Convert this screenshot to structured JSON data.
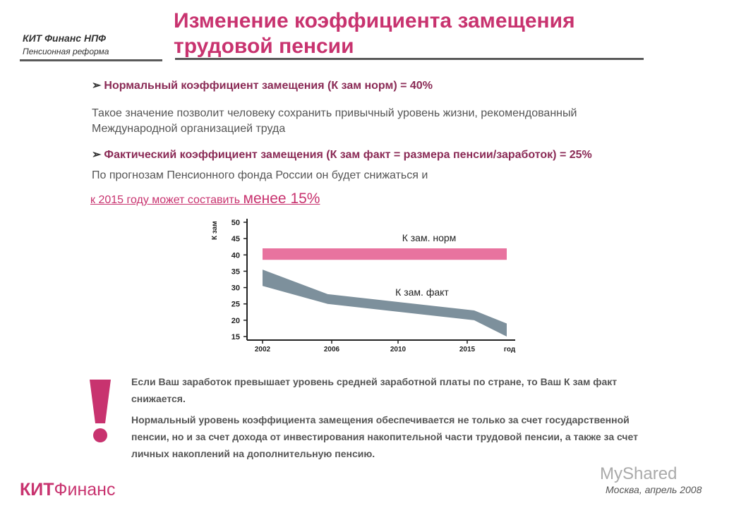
{
  "header": {
    "brand_line1": "КИТ Финанс НПФ",
    "brand_line2": "Пенсионная реформа",
    "title_line1": "Изменение коэффициента замещения",
    "title_line2": "трудовой пенсии"
  },
  "body": {
    "bullet1": "Нормальный коэффициент замещения (К зам норм) = 40%",
    "para1": "Такое значение позволит человеку сохранить привычный уровень жизни, рекомендованный Международной организацией труда",
    "bullet2": "Фактический коэффициент замещения (К зам факт = размера пенсии/заработок) = 25%",
    "para2": "По прогнозам Пенсионного фонда России он будет снижаться и",
    "para3_pre": "к 2015 году может составить ",
    "para3_big": "менее 15%"
  },
  "chart_data": {
    "type": "area",
    "ylabel": "К зам",
    "xlabel": "год",
    "ylim": [
      15,
      50
    ],
    "yticks": [
      15,
      20,
      25,
      30,
      35,
      40,
      45,
      50
    ],
    "xtick_labels": [
      "2002",
      "2006",
      "2010",
      "2015",
      "год"
    ],
    "series": [
      {
        "name": "К зам. норм",
        "color": "#e8739f",
        "x": [
          2002,
          2017
        ],
        "lower": [
          38.5,
          38.5
        ],
        "upper": [
          42,
          42
        ]
      },
      {
        "name": "К зам. факт",
        "color": "#7d909c",
        "x": [
          2002,
          2006,
          2015,
          2017
        ],
        "lower": [
          30.5,
          25,
          20,
          15
        ],
        "upper": [
          35.5,
          28,
          23,
          19
        ]
      }
    ]
  },
  "notes": {
    "note1": "Если Ваш заработок превышает уровень средней заработной платы по стране, то Ваш К зам факт снижается.",
    "note2": "Нормальный уровень коэффициента замещения обеспечивается не только за счет государственной пенсии, но и за счет дохода от инвестирования накопительной части трудовой пенсии, а также за счет личных накоплений на дополнительную пенсию."
  },
  "footer": {
    "logo_bold": "КИТ",
    "logo_rest": "Финанс",
    "date": "Москва, апрель 2008",
    "watermark": "MyShared"
  },
  "colors": {
    "accent": "#c8336f",
    "norm_band": "#e8739f",
    "fact_band": "#7d909c"
  }
}
